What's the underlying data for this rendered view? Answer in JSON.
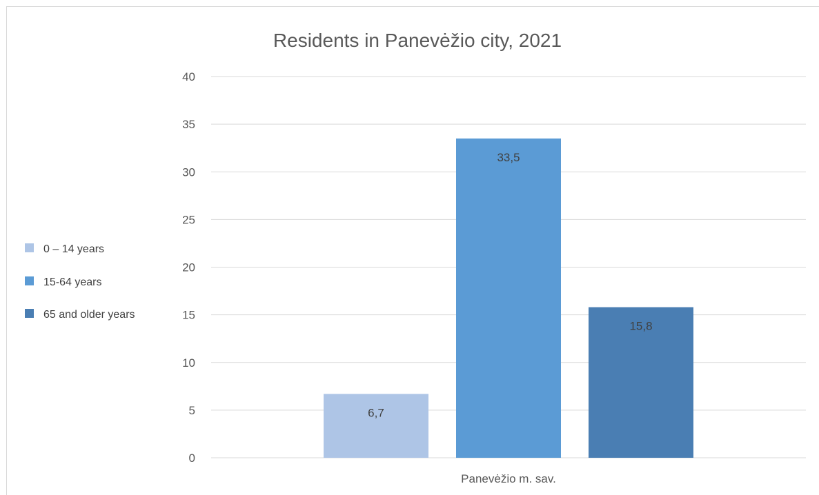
{
  "chart_data": {
    "type": "bar",
    "title": "Residents in Panevėžio city, 2021",
    "categories": [
      "Panevėžio m. sav."
    ],
    "series": [
      {
        "name": "0 – 14 years",
        "values": [
          6.7
        ],
        "label": "6,7",
        "color": "#aec5e6"
      },
      {
        "name": "15-64 years",
        "values": [
          33.5
        ],
        "label": "33,5",
        "color": "#5b9bd5"
      },
      {
        "name": "65 and older years",
        "values": [
          15.8
        ],
        "label": "15,8",
        "color": "#4a7eb3"
      }
    ],
    "yticks": [
      0,
      5,
      10,
      15,
      20,
      25,
      30,
      35,
      40
    ],
    "ylim": [
      0,
      40
    ],
    "grid": true,
    "legend_position": "left",
    "xlabel": "",
    "ylabel": ""
  }
}
